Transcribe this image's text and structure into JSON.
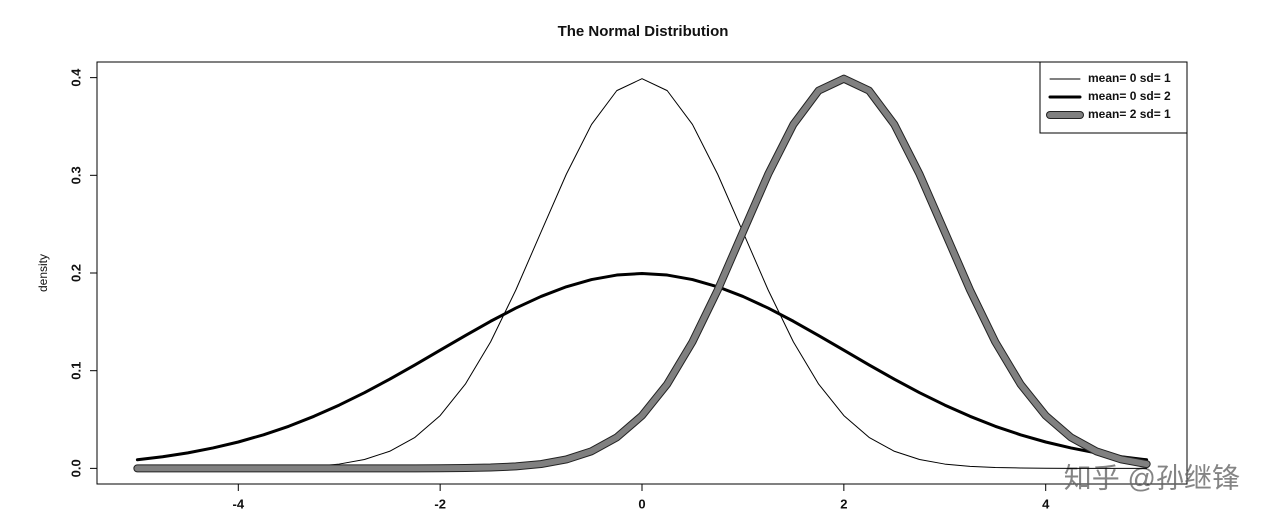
{
  "chart_data": {
    "type": "line",
    "title": "The Normal Distribution",
    "y_label": "density",
    "x": [
      -5,
      -4.75,
      -4.5,
      -4.25,
      -4,
      -3.75,
      -3.5,
      -3.25,
      -3,
      -2.75,
      -2.5,
      -2.25,
      -2,
      -1.75,
      -1.5,
      -1.25,
      -1,
      -0.75,
      -0.5,
      -0.25,
      0,
      0.25,
      0.5,
      0.75,
      1,
      1.25,
      1.5,
      1.75,
      2,
      2.25,
      2.5,
      2.75,
      3,
      3.25,
      3.5,
      3.75,
      4,
      4.25,
      4.5,
      4.75,
      5
    ],
    "series": [
      {
        "name": "mean= 0 sd= 1",
        "color": "#000000",
        "width": 1,
        "values": [
          0,
          0,
          0,
          0,
          0.0001,
          0.0004,
          0.0009,
          0.002,
          0.0044,
          0.0091,
          0.0175,
          0.0317,
          0.054,
          0.0863,
          0.1295,
          0.1826,
          0.242,
          0.3011,
          0.3521,
          0.3867,
          0.3989,
          0.3867,
          0.3521,
          0.3011,
          0.242,
          0.1826,
          0.1295,
          0.0863,
          0.054,
          0.0317,
          0.0175,
          0.0091,
          0.0044,
          0.002,
          0.0009,
          0.0004,
          0.0001,
          0,
          0,
          0,
          0
        ]
      },
      {
        "name": "mean= 0 sd= 2",
        "color": "#000000",
        "width": 3,
        "values": [
          0.0088,
          0.0119,
          0.0159,
          0.0209,
          0.027,
          0.0344,
          0.0431,
          0.0533,
          0.0648,
          0.0775,
          0.0913,
          0.1059,
          0.121,
          0.136,
          0.1506,
          0.1641,
          0.176,
          0.1859,
          0.1933,
          0.1979,
          0.1995,
          0.1979,
          0.1933,
          0.1859,
          0.176,
          0.1641,
          0.1506,
          0.136,
          0.121,
          0.1059,
          0.0913,
          0.0775,
          0.0648,
          0.0533,
          0.0431,
          0.0344,
          0.027,
          0.0209,
          0.0159,
          0.0119,
          0.0088
        ]
      },
      {
        "name": "mean= 2 sd= 1",
        "color": "#808080",
        "width": 6,
        "values": [
          0,
          0,
          0,
          0,
          0,
          0,
          0,
          0,
          0,
          0,
          0,
          0,
          0.0001,
          0.0004,
          0.0009,
          0.002,
          0.0044,
          0.0091,
          0.0175,
          0.0317,
          0.054,
          0.0863,
          0.1295,
          0.1826,
          0.242,
          0.3011,
          0.3521,
          0.3867,
          0.3989,
          0.3867,
          0.3521,
          0.3011,
          0.242,
          0.1826,
          0.1295,
          0.0863,
          0.054,
          0.0317,
          0.0175,
          0.0091,
          0.0044
        ]
      }
    ],
    "xlim": [
      -5.4,
      5.4
    ],
    "xticks": [
      -4,
      -2,
      0,
      2,
      4
    ],
    "ylim": [
      -0.016,
      0.416
    ],
    "yticks": [
      {
        "value": 0,
        "label": "0.0"
      },
      0.1,
      0.2,
      0.3,
      0.4
    ],
    "legend": "top-right"
  },
  "watermark": "知乎 @孙继锋"
}
